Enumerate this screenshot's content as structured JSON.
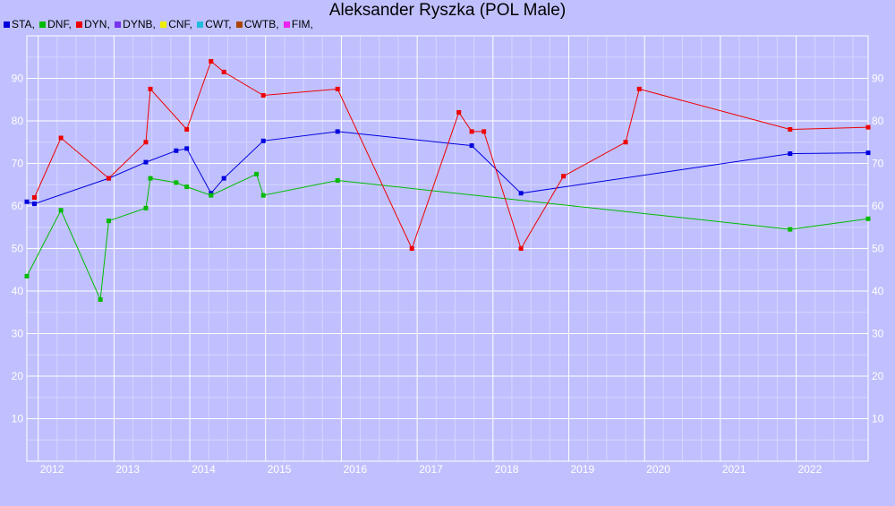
{
  "chart_data": {
    "type": "line",
    "title": "Aleksander Ryszka (POL Male)",
    "xlabel": "",
    "ylabel": "",
    "xlim": [
      2011.85,
      2022.95
    ],
    "ylim": [
      0,
      100
    ],
    "x_ticks": [
      "2012",
      "2013",
      "2014",
      "2015",
      "2016",
      "2017",
      "2018",
      "2019",
      "2020",
      "2021",
      "2022"
    ],
    "y_ticks": [
      "10",
      "20",
      "30",
      "40",
      "50",
      "60",
      "70",
      "80",
      "90"
    ],
    "grid": true,
    "legend_position": "top-left",
    "legend": [
      {
        "name": "STA,",
        "color": "#0000dd"
      },
      {
        "name": "DNF,",
        "color": "#00bb00"
      },
      {
        "name": "DYN,",
        "color": "#ee0000"
      },
      {
        "name": "DYNB,",
        "color": "#7733ee"
      },
      {
        "name": "CNF,",
        "color": "#eeee00"
      },
      {
        "name": "CWT,",
        "color": "#22bbdd"
      },
      {
        "name": "CWTB,",
        "color": "#aa4400"
      },
      {
        "name": "FIM,",
        "color": "#ee22ee"
      }
    ],
    "series": [
      {
        "key": "STA",
        "color": "#0000dd",
        "points": [
          [
            2011.85,
            61
          ],
          [
            2011.95,
            60.5
          ],
          [
            2012.93,
            66.5
          ],
          [
            2013.42,
            70.3
          ],
          [
            2013.82,
            73
          ],
          [
            2013.96,
            73.5
          ],
          [
            2014.28,
            63
          ],
          [
            2014.45,
            66.5
          ],
          [
            2014.97,
            75.3
          ],
          [
            2015.95,
            77.5
          ],
          [
            2017.72,
            74.2
          ],
          [
            2018.37,
            63
          ],
          [
            2021.92,
            72.3
          ],
          [
            2022.95,
            72.5
          ]
        ]
      },
      {
        "key": "DNF",
        "color": "#00bb00",
        "points": [
          [
            2011.85,
            43.5
          ],
          [
            2012.3,
            59
          ],
          [
            2012.82,
            38
          ],
          [
            2012.93,
            56.5
          ],
          [
            2013.42,
            59.5
          ],
          [
            2013.48,
            66.5
          ],
          [
            2013.82,
            65.5
          ],
          [
            2013.96,
            64.5
          ],
          [
            2014.28,
            62.5
          ],
          [
            2014.88,
            67.5
          ],
          [
            2014.97,
            62.5
          ],
          [
            2015.95,
            66
          ],
          [
            2021.92,
            54.5
          ],
          [
            2022.95,
            57
          ]
        ]
      },
      {
        "key": "DYN",
        "color": "#ee0000",
        "points": [
          [
            2011.95,
            62
          ],
          [
            2012.3,
            76
          ],
          [
            2012.93,
            66.5
          ],
          [
            2013.42,
            75
          ],
          [
            2013.48,
            87.5
          ],
          [
            2013.96,
            78
          ],
          [
            2014.28,
            94
          ],
          [
            2014.45,
            91.5
          ],
          [
            2014.97,
            86
          ],
          [
            2015.95,
            87.5
          ],
          [
            2016.93,
            50
          ],
          [
            2017.55,
            82
          ],
          [
            2017.72,
            77.5
          ],
          [
            2017.88,
            77.5
          ],
          [
            2018.37,
            50
          ],
          [
            2018.93,
            67
          ],
          [
            2019.75,
            75
          ],
          [
            2019.93,
            87.5
          ],
          [
            2021.92,
            78
          ],
          [
            2022.95,
            78.5
          ]
        ]
      }
    ]
  }
}
